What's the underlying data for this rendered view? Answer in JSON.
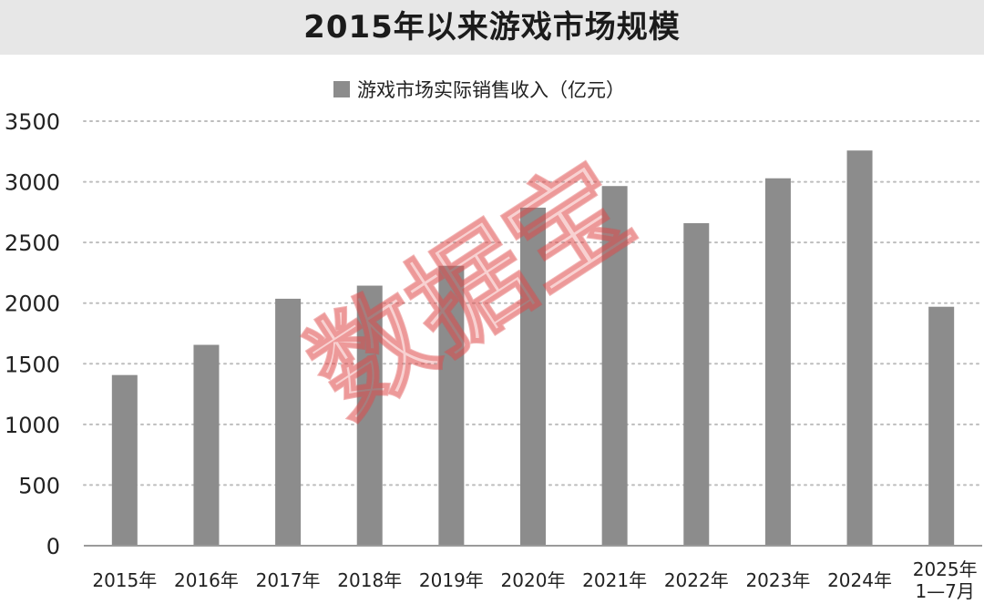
{
  "chart_data": {
    "type": "bar",
    "title": "2015年以来游戏市场规模",
    "xlabel": "",
    "ylabel": "",
    "categories": [
      "2015年",
      "2016年",
      "2017年",
      "2018年",
      "2019年",
      "2020年",
      "2021年",
      "2022年",
      "2023年",
      "2024年",
      [
        "2025年",
        "1—7月"
      ]
    ],
    "series": [
      {
        "name": "游戏市场实际销售收入（亿元）",
        "values": [
          1407,
          1656,
          2036,
          2144,
          2308,
          2787,
          2965,
          2659,
          3029,
          3258,
          1970
        ]
      }
    ],
    "ylim": [
      0,
      3500
    ],
    "yticks": [
      0,
      500,
      1000,
      1500,
      2000,
      2500,
      3000,
      3500
    ],
    "grid": "horizontal-dotted",
    "legend_position": "top-center",
    "colors": {
      "bar": "#8c8c8c",
      "grid": "#bdbdbd",
      "axis": "#9a9a9a",
      "title_band": "#e7e7e7"
    }
  },
  "watermark": {
    "text": "数据宝"
  }
}
